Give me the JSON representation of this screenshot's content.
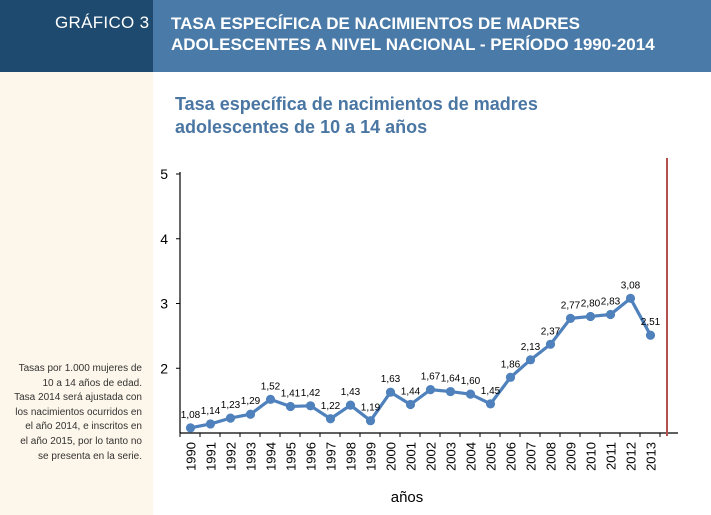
{
  "header": {
    "label": "GRÁFICO 3",
    "title_line1": "TASA ESPECÍFICA DE NACIMIENTOS DE MADRES",
    "title_line2": "ADOLESCENTES A NIVEL NACIONAL - PERÍODO 1990-2014"
  },
  "note": [
    "Tasas por 1.000 mujeres de",
    "10 a 14 años de edad.",
    "Tasa 2014 será ajustada con",
    "los nacimientos ocurridos en",
    "el año 2014, e inscritos en",
    "el año 2015, por lo tanto no",
    "se presenta en la serie."
  ],
  "chart_data": {
    "type": "line",
    "title_line1": "Tasa específica de nacimientos de madres",
    "title_line2": "adolescentes de 10 a 14 años",
    "xlabel": "años",
    "ylabel": "",
    "ylim": [
      1,
      5
    ],
    "yticks": [
      2,
      3,
      4,
      5
    ],
    "categories": [
      "1990",
      "1991",
      "1992",
      "1993",
      "1994",
      "1995",
      "1996",
      "1997",
      "1998",
      "1999",
      "2000",
      "2001",
      "2002",
      "2003",
      "2004",
      "2005",
      "2006",
      "2007",
      "2008",
      "2009",
      "2010",
      "2011",
      "2012",
      "2013"
    ],
    "series": [
      {
        "name": "Tasa",
        "values": [
          1.08,
          1.14,
          1.23,
          1.29,
          1.52,
          1.41,
          1.42,
          1.22,
          1.43,
          1.19,
          1.63,
          1.44,
          1.67,
          1.64,
          1.6,
          1.45,
          1.86,
          2.13,
          2.37,
          2.77,
          2.8,
          2.83,
          3.08,
          2.51
        ],
        "labels": [
          "1,08",
          "1,14",
          "1,23",
          "1,29",
          "1,52",
          "1,41",
          "1,42",
          "1,22",
          "1,43",
          "1,19",
          "1,63",
          "1,44",
          "1,67",
          "1,64",
          "1,60",
          "1,45",
          "1,86",
          "2,13",
          "2,37",
          "2,77",
          "2,80",
          "2,83",
          "3,08",
          "2,51"
        ]
      }
    ],
    "line_color": "#4f81bd",
    "marker_line_color": "#b5504f",
    "grid": false
  }
}
